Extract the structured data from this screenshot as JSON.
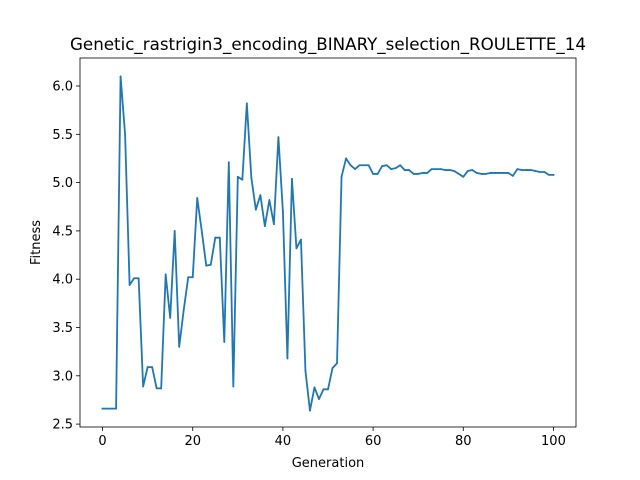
{
  "chart_data": {
    "type": "line",
    "title": "Genetic_rastrigin3_encoding_BINARY_selection_ROULETTE_14",
    "xlabel": "Generation",
    "ylabel": "Fitness",
    "xlim": [
      -5,
      105
    ],
    "ylim": [
      2.47,
      6.29
    ],
    "xticks": [
      0,
      20,
      40,
      60,
      80,
      100
    ],
    "yticks": [
      2.5,
      3.0,
      3.5,
      4.0,
      4.5,
      5.0,
      5.5,
      6.0
    ],
    "grid": false,
    "legend": "none",
    "series": [
      {
        "color": "#1f77b4",
        "x": [
          0,
          1,
          2,
          3,
          4,
          5,
          6,
          7,
          8,
          9,
          10,
          11,
          12,
          13,
          14,
          15,
          16,
          17,
          18,
          19,
          20,
          21,
          22,
          23,
          24,
          25,
          26,
          27,
          28,
          29,
          30,
          31,
          32,
          33,
          34,
          35,
          36,
          37,
          38,
          39,
          40,
          41,
          42,
          43,
          44,
          45,
          46,
          47,
          48,
          49,
          50,
          51,
          52,
          53,
          54,
          55,
          56,
          57,
          58,
          59,
          60,
          61,
          62,
          63,
          64,
          65,
          66,
          67,
          68,
          69,
          70,
          71,
          72,
          73,
          74,
          75,
          76,
          77,
          78,
          79,
          80,
          81,
          82,
          83,
          84,
          85,
          86,
          87,
          88,
          89,
          90,
          91,
          92,
          93,
          94,
          95,
          96,
          97,
          98,
          99,
          100
        ],
        "values": [
          2.66,
          2.66,
          2.66,
          2.66,
          6.1,
          5.5,
          3.94,
          4.01,
          4.01,
          2.89,
          3.09,
          3.09,
          2.87,
          2.87,
          4.05,
          3.6,
          4.5,
          3.3,
          3.68,
          4.02,
          4.02,
          4.84,
          4.5,
          4.14,
          4.15,
          4.43,
          4.43,
          3.35,
          5.21,
          2.89,
          5.06,
          5.03,
          5.82,
          5.05,
          4.72,
          4.87,
          4.55,
          4.82,
          4.57,
          5.47,
          4.7,
          3.18,
          5.04,
          4.32,
          4.41,
          3.05,
          2.64,
          2.88,
          2.76,
          2.86,
          2.86,
          3.08,
          3.13,
          5.06,
          5.25,
          5.18,
          5.14,
          5.18,
          5.18,
          5.18,
          5.09,
          5.09,
          5.17,
          5.18,
          5.14,
          5.15,
          5.18,
          5.13,
          5.13,
          5.09,
          5.09,
          5.1,
          5.1,
          5.14,
          5.14,
          5.14,
          5.13,
          5.13,
          5.12,
          5.09,
          5.06,
          5.12,
          5.13,
          5.1,
          5.09,
          5.09,
          5.1,
          5.1,
          5.1,
          5.1,
          5.1,
          5.07,
          5.14,
          5.13,
          5.13,
          5.13,
          5.12,
          5.11,
          5.11,
          5.08,
          5.08
        ]
      }
    ]
  }
}
